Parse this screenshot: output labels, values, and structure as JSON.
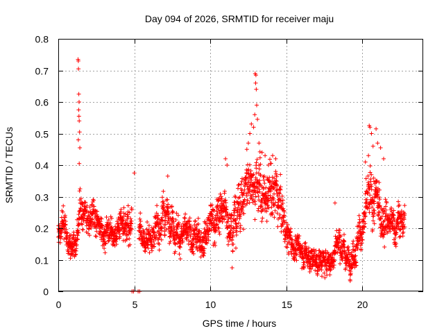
{
  "chart_data": {
    "type": "scatter",
    "title": "Day 094 of 2026, SRMTID for receiver maju",
    "xlabel": "GPS time / hours",
    "ylabel": "SRMTID / TECUs",
    "xlim": [
      0,
      24
    ],
    "ylim": [
      0,
      0.8
    ],
    "x_ticks": [
      0,
      5,
      10,
      15,
      20
    ],
    "y_ticks": [
      0,
      0.1,
      0.2,
      0.3,
      0.4,
      0.5,
      0.6,
      0.7,
      0.8
    ],
    "x_tick_labels": [
      "0",
      "5",
      "10",
      "15",
      "20"
    ],
    "y_tick_labels": [
      "0",
      "0.1",
      "0.2",
      "0.3",
      "0.4",
      "0.5",
      "0.6",
      "0.7",
      "0.8"
    ],
    "grid": true,
    "marker": "+",
    "color": "#ff0000",
    "series": [
      {
        "name": "SRMTID",
        "profile_x": [
          0.0,
          0.3,
          0.6,
          1.0,
          1.3,
          1.5,
          1.8,
          2.2,
          2.6,
          3.0,
          3.4,
          3.8,
          4.2,
          4.6,
          5.0,
          5.3,
          5.6,
          6.0,
          6.4,
          6.8,
          7.2,
          7.6,
          8.0,
          8.5,
          9.0,
          9.5,
          10.0,
          10.5,
          11.0,
          11.5,
          12.0,
          12.4,
          12.8,
          13.1,
          13.4,
          13.8,
          14.2,
          14.6,
          15.0,
          15.5,
          16.0,
          16.5,
          17.0,
          17.5,
          18.0,
          18.3,
          18.6,
          19.0,
          19.5,
          20.0,
          20.3,
          20.6,
          21.0,
          21.4,
          21.8,
          22.2,
          22.6
        ],
        "profile_mean": [
          0.18,
          0.2,
          0.16,
          0.14,
          0.22,
          0.27,
          0.26,
          0.25,
          0.22,
          0.19,
          0.2,
          0.18,
          0.17,
          0.22,
          0.2,
          0.18,
          0.16,
          0.17,
          0.2,
          0.22,
          0.25,
          0.22,
          0.18,
          0.17,
          0.16,
          0.18,
          0.22,
          0.24,
          0.25,
          0.22,
          0.28,
          0.33,
          0.38,
          0.36,
          0.3,
          0.29,
          0.32,
          0.28,
          0.18,
          0.14,
          0.13,
          0.11,
          0.1,
          0.09,
          0.1,
          0.15,
          0.16,
          0.1,
          0.14,
          0.2,
          0.26,
          0.28,
          0.27,
          0.24,
          0.2,
          0.21,
          0.22
        ],
        "profile_spread": [
          0.04,
          0.05,
          0.04,
          0.04,
          0.06,
          0.07,
          0.06,
          0.05,
          0.05,
          0.04,
          0.05,
          0.04,
          0.05,
          0.06,
          0.05,
          0.05,
          0.04,
          0.05,
          0.06,
          0.06,
          0.06,
          0.06,
          0.05,
          0.05,
          0.05,
          0.05,
          0.06,
          0.07,
          0.07,
          0.07,
          0.08,
          0.09,
          0.1,
          0.1,
          0.09,
          0.09,
          0.09,
          0.08,
          0.05,
          0.04,
          0.04,
          0.04,
          0.04,
          0.04,
          0.04,
          0.05,
          0.05,
          0.04,
          0.05,
          0.06,
          0.08,
          0.09,
          0.08,
          0.07,
          0.06,
          0.06,
          0.06
        ],
        "points_per_hour": 110,
        "x_start": 0.0,
        "x_end": 22.8,
        "gaps": [
          [
            4.85,
            5.3
          ]
        ],
        "zero_points": [
          [
            4.85,
            0.0
          ],
          [
            4.95,
            0.0
          ],
          [
            5.25,
            0.0
          ],
          [
            5.35,
            0.0
          ]
        ],
        "peak_points": [
          [
            1.3,
            0.735
          ],
          [
            1.32,
            0.73
          ],
          [
            1.33,
            0.705
          ],
          [
            1.35,
            0.625
          ],
          [
            1.37,
            0.6
          ],
          [
            1.34,
            0.575
          ],
          [
            1.36,
            0.555
          ],
          [
            1.38,
            0.54
          ],
          [
            1.4,
            0.505
          ],
          [
            1.32,
            0.48
          ],
          [
            1.42,
            0.455
          ],
          [
            1.38,
            0.405
          ],
          [
            12.95,
            0.69
          ],
          [
            13.0,
            0.685
          ],
          [
            12.98,
            0.66
          ],
          [
            13.02,
            0.64
          ],
          [
            13.05,
            0.59
          ],
          [
            12.92,
            0.56
          ],
          [
            13.1,
            0.545
          ],
          [
            12.7,
            0.53
          ],
          [
            12.85,
            0.52
          ],
          [
            12.6,
            0.5
          ],
          [
            12.5,
            0.47
          ],
          [
            13.2,
            0.47
          ],
          [
            12.4,
            0.45
          ],
          [
            13.4,
            0.44
          ],
          [
            13.6,
            0.43
          ],
          [
            14.1,
            0.43
          ],
          [
            14.3,
            0.42
          ],
          [
            14.0,
            0.405
          ],
          [
            20.45,
            0.525
          ],
          [
            20.5,
            0.52
          ],
          [
            20.9,
            0.515
          ],
          [
            20.6,
            0.5
          ],
          [
            21.0,
            0.47
          ],
          [
            20.7,
            0.46
          ],
          [
            21.2,
            0.455
          ],
          [
            20.4,
            0.43
          ],
          [
            21.4,
            0.42
          ],
          [
            20.2,
            0.41
          ],
          [
            5.0,
            0.375
          ],
          [
            7.2,
            0.365
          ],
          [
            11.0,
            0.42
          ],
          [
            11.1,
            0.4
          ],
          [
            18.2,
            0.28
          ]
        ]
      }
    ]
  }
}
